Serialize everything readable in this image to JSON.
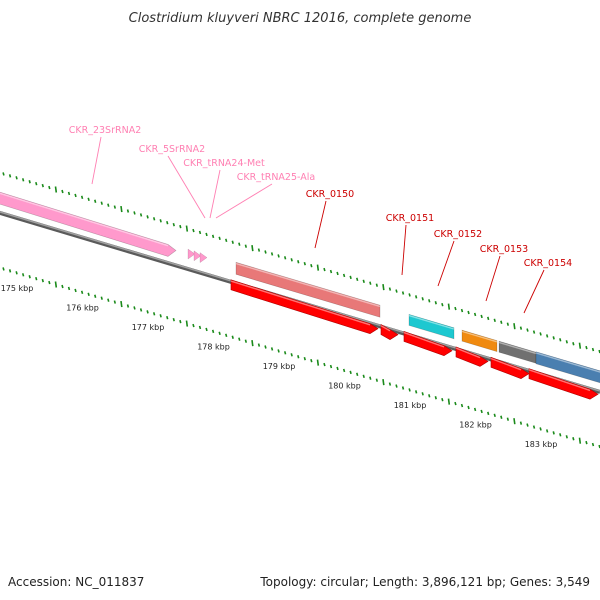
{
  "title": "Clostridium kluyveri NBRC 12016, complete genome",
  "accession": "Accession: NC_011837",
  "topology": "Topology: circular; Length: 3,896,121 bp; Genes: 3,549",
  "axis": {
    "unit": "kbp",
    "ticks": [
      175,
      176,
      177,
      178,
      179,
      180,
      181,
      182,
      183
    ],
    "tick_labels": [
      "175 kbp",
      "176 kbp",
      "177 kbp",
      "178 kbp",
      "179 kbp",
      "180 kbp",
      "181 kbp",
      "182 kbp",
      "183 kbp"
    ]
  },
  "colors": {
    "rRNA": "#ff99cc",
    "tRNA": "#ff99cc",
    "cds_forward": "#ff0000",
    "tick": "#1a8a1a",
    "backbone": "#888888",
    "rna_label": "#ff80b3",
    "cds_label": "#cc0000"
  },
  "features": [
    {
      "label": "CKR_23SrRNA2",
      "kind": "rRNA",
      "color": "#ff99cc"
    },
    {
      "label": "CKR_5SrRNA2",
      "kind": "rRNA",
      "color": "#ff99cc"
    },
    {
      "label": "CKR_tRNA24-Met",
      "kind": "tRNA",
      "color": "#ff99cc"
    },
    {
      "label": "CKR_tRNA25-Ala",
      "kind": "tRNA",
      "color": "#ff99cc"
    },
    {
      "label": "CKR_0150",
      "kind": "gene",
      "color": "#e87878"
    },
    {
      "label": "CKR_0151",
      "kind": "gene",
      "color": "#1ec8d0"
    },
    {
      "label": "CKR_0152",
      "kind": "gene",
      "color": "#f08a10"
    },
    {
      "label": "CKR_0153",
      "kind": "gene",
      "color": "#707070"
    },
    {
      "label": "CKR_0154",
      "kind": "gene",
      "color": "#4a7fb0"
    }
  ]
}
